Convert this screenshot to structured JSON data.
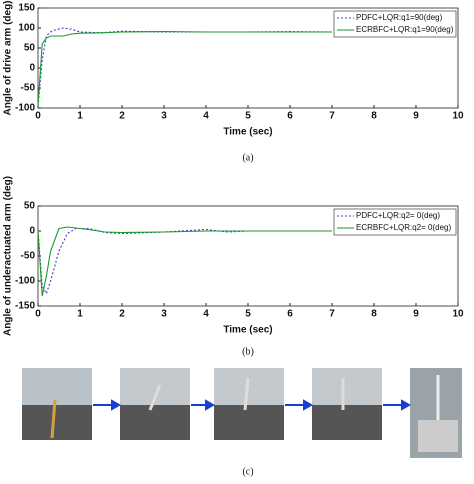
{
  "chart_data": [
    {
      "type": "line",
      "caption": "(a)",
      "xlabel": "Time (sec)",
      "ylabel": "Angle of drive arm (deg)",
      "xlim": [
        0,
        10
      ],
      "xticks": [
        0,
        1,
        2,
        3,
        4,
        5,
        6,
        7,
        8,
        9,
        10
      ],
      "ylim": [
        -100,
        150
      ],
      "yticks": [
        -100,
        -50,
        0,
        50,
        100,
        150
      ],
      "x": [
        0,
        0.1,
        0.2,
        0.3,
        0.4,
        0.6,
        0.8,
        1,
        1.5,
        2,
        3,
        4,
        5,
        6,
        7
      ],
      "series": [
        {
          "name": "PDFC+LQR:q1=90(deg)",
          "color": "#3a3ad0",
          "linestyle": "dotted",
          "values": [
            -95,
            20,
            80,
            90,
            95,
            100,
            97,
            90,
            88,
            92,
            90,
            90,
            90,
            91,
            90
          ]
        },
        {
          "name": "ECRBFC+LQR:q1=90(deg)",
          "color": "#1a9a2a",
          "linestyle": "solid",
          "values": [
            -95,
            60,
            75,
            80,
            80,
            80,
            85,
            87,
            88,
            90,
            91,
            90,
            90,
            90,
            90
          ]
        }
      ],
      "legend": "upper right"
    },
    {
      "type": "line",
      "caption": "(b)",
      "xlabel": "Time (sec)",
      "ylabel": "Angle of underactuated arm (deg)",
      "xlim": [
        0,
        10
      ],
      "xticks": [
        0,
        1,
        2,
        3,
        4,
        5,
        6,
        7,
        8,
        9,
        10
      ],
      "ylim": [
        -150,
        50
      ],
      "yticks": [
        -150,
        -100,
        -50,
        0,
        50
      ],
      "x": [
        0,
        0.1,
        0.2,
        0.3,
        0.5,
        0.7,
        0.9,
        1.2,
        1.6,
        2,
        3,
        4,
        4.5,
        5,
        6,
        7
      ],
      "series": [
        {
          "name": "PDFC+LQR:q2= 0(deg)",
          "color": "#3a3ad0",
          "linestyle": "dotted",
          "values": [
            0,
            -110,
            -125,
            -100,
            -40,
            -5,
            5,
            5,
            -3,
            -5,
            -2,
            3,
            -2,
            0,
            0,
            0
          ]
        },
        {
          "name": "ECRBFC+LQR:q2= 0(deg)",
          "color": "#1a9a2a",
          "linestyle": "solid",
          "values": [
            0,
            -130,
            -90,
            -40,
            5,
            8,
            6,
            3,
            -2,
            -3,
            -2,
            0,
            0,
            0,
            0,
            0
          ]
        }
      ],
      "legend": "upper right"
    }
  ],
  "figure_c": {
    "caption": "(c)"
  }
}
